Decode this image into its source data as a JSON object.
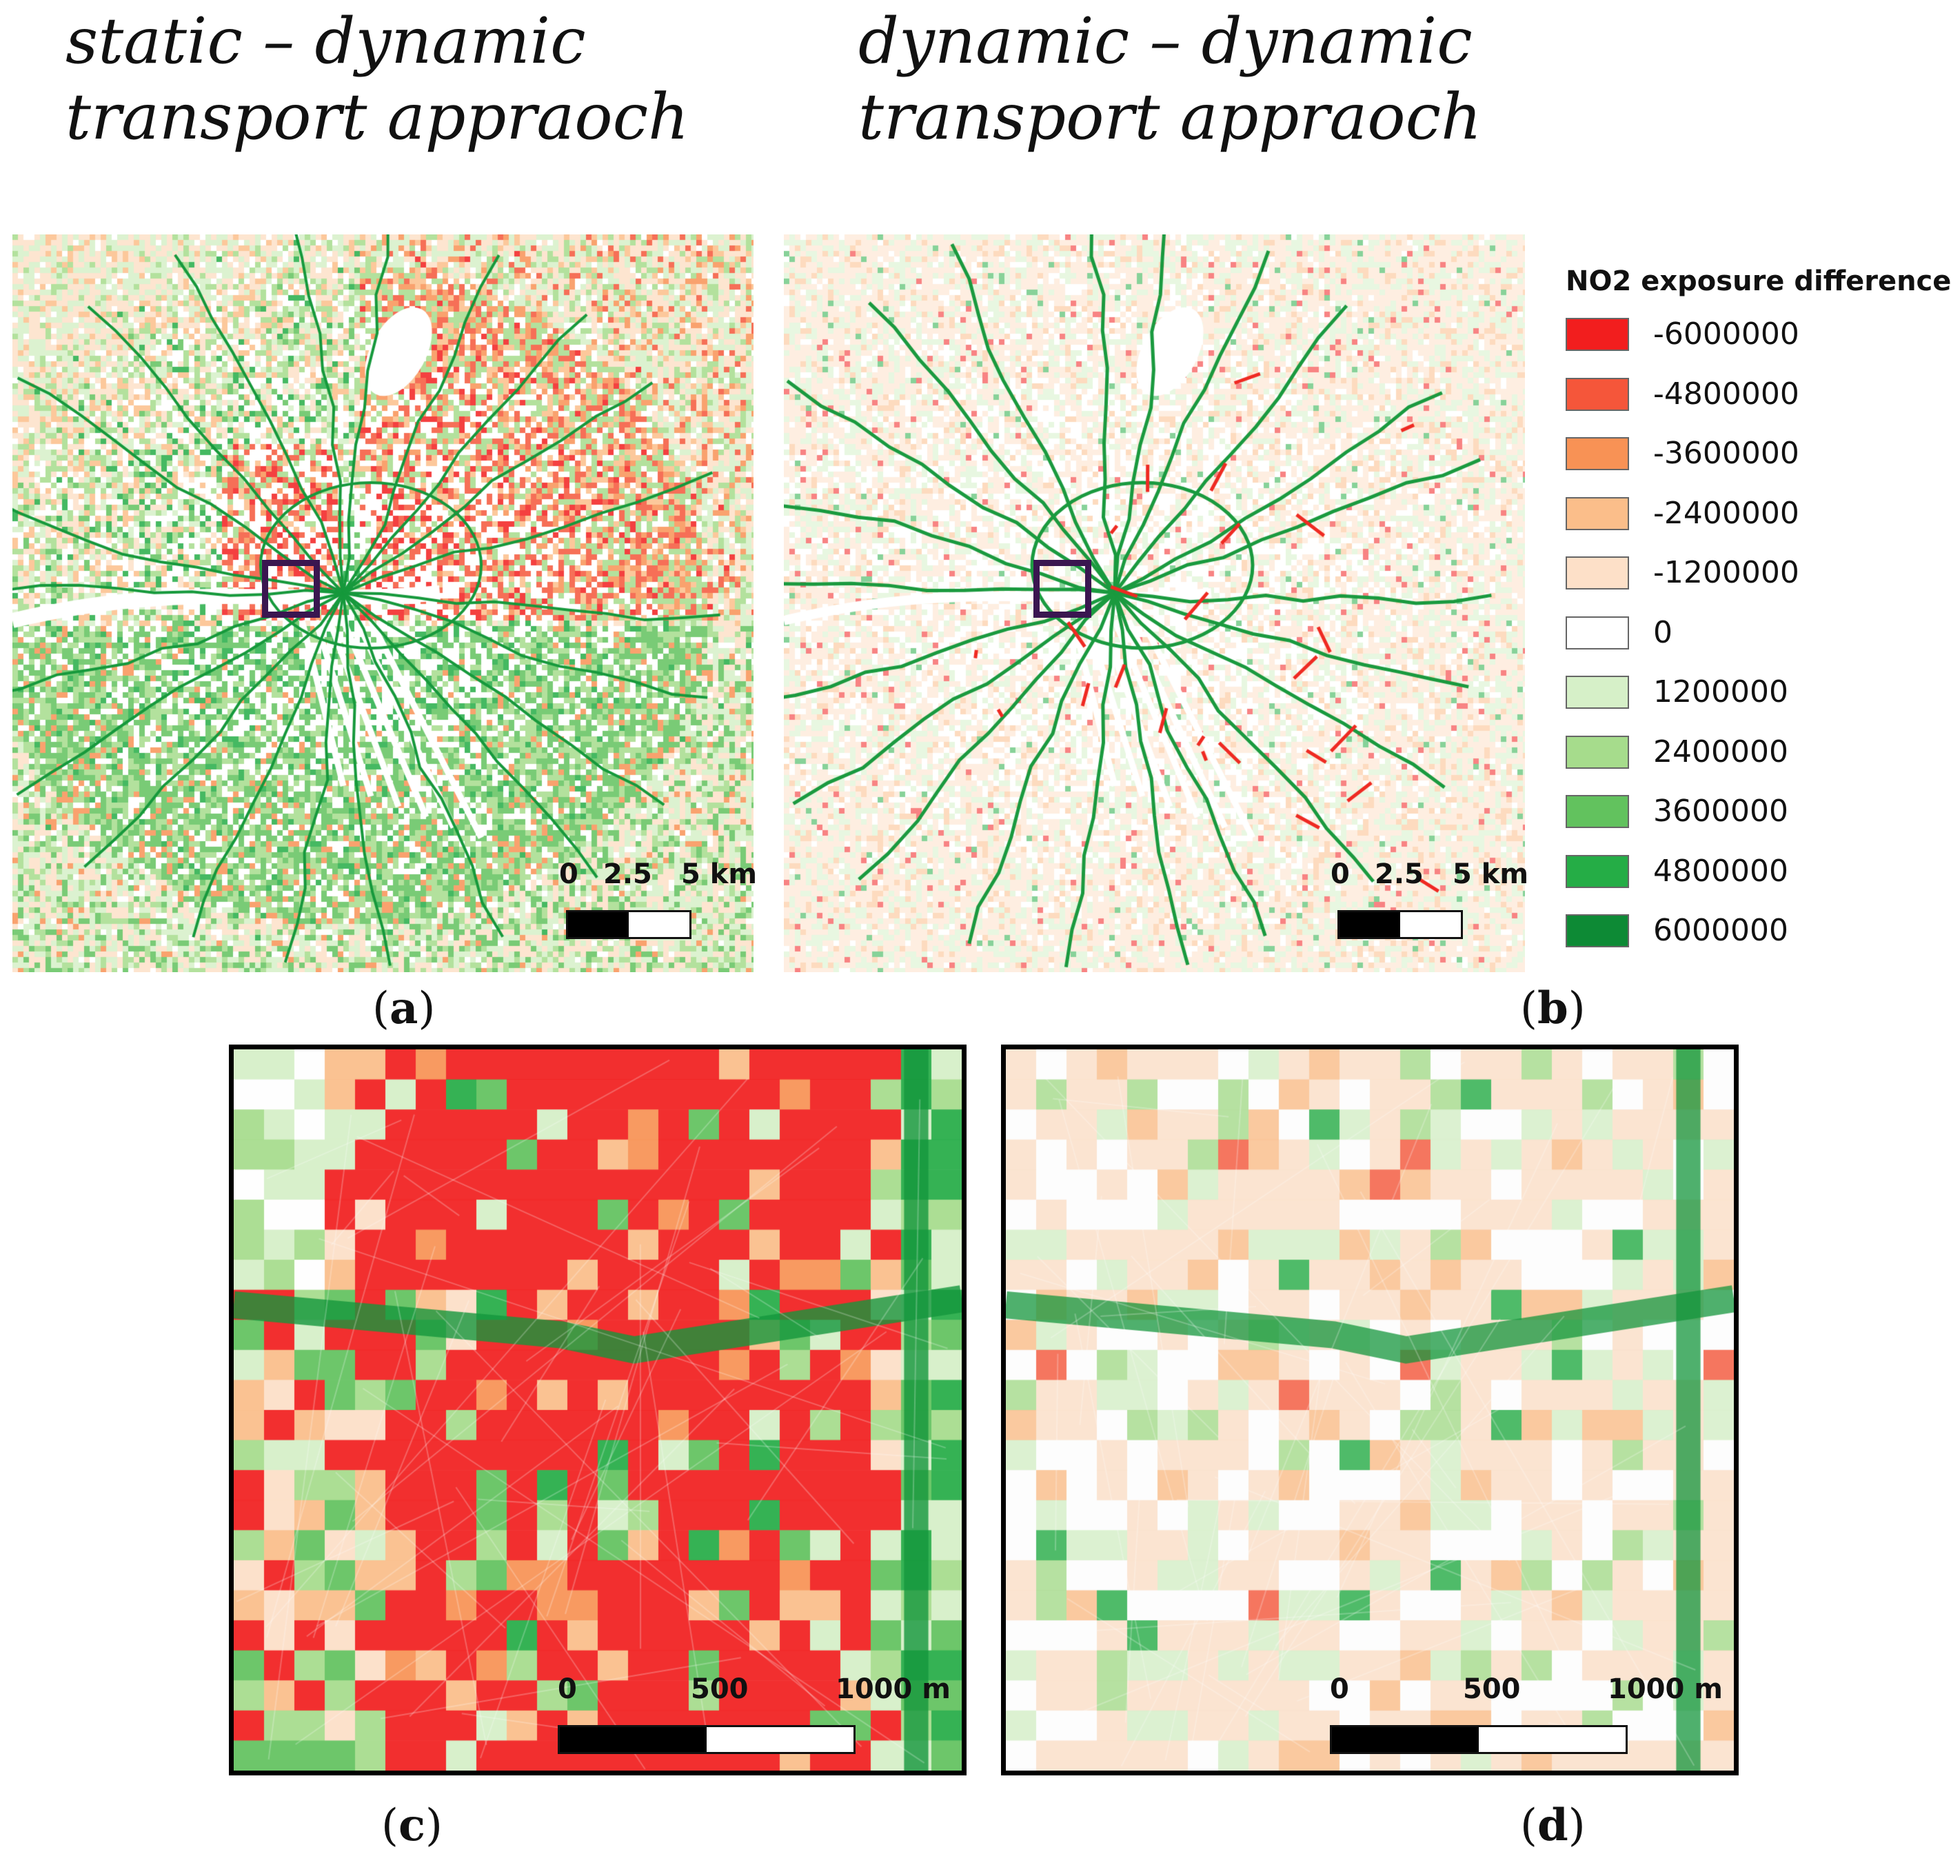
{
  "titles": {
    "a": [
      "static – dynamic",
      "transport appraoch"
    ],
    "b": [
      "dynamic – dynamic",
      "transport appraoch"
    ]
  },
  "legend": {
    "title": "NO2 exposure difference",
    "items": [
      {
        "value": "-6000000",
        "color": "#f21e1e"
      },
      {
        "value": "-4800000",
        "color": "#f5563a"
      },
      {
        "value": "-3600000",
        "color": "#f89255"
      },
      {
        "value": "-2400000",
        "color": "#fbbe8a"
      },
      {
        "value": "-1200000",
        "color": "#fde0c8"
      },
      {
        "value": "0",
        "color": "#ffffff"
      },
      {
        "value": "1200000",
        "color": "#d6f0c8"
      },
      {
        "value": "2400000",
        "color": "#a6dc8c"
      },
      {
        "value": "3600000",
        "color": "#62c25e"
      },
      {
        "value": "4800000",
        "color": "#25ad46"
      },
      {
        "value": "6000000",
        "color": "#0d8a35"
      }
    ]
  },
  "scales": {
    "km": {
      "labels": [
        "0",
        "2.5",
        "5 km"
      ]
    },
    "m": {
      "labels": [
        "0",
        "500",
        "1000 m"
      ]
    }
  },
  "captions": {
    "a": {
      "open": "(",
      "letter": "a",
      "close": ")"
    },
    "b": {
      "open": "(",
      "letter": "b",
      "close": ")"
    },
    "c": {
      "open": "(",
      "letter": "c",
      "close": ")"
    },
    "d": {
      "open": "(",
      "letter": "d",
      "close": ")"
    }
  }
}
